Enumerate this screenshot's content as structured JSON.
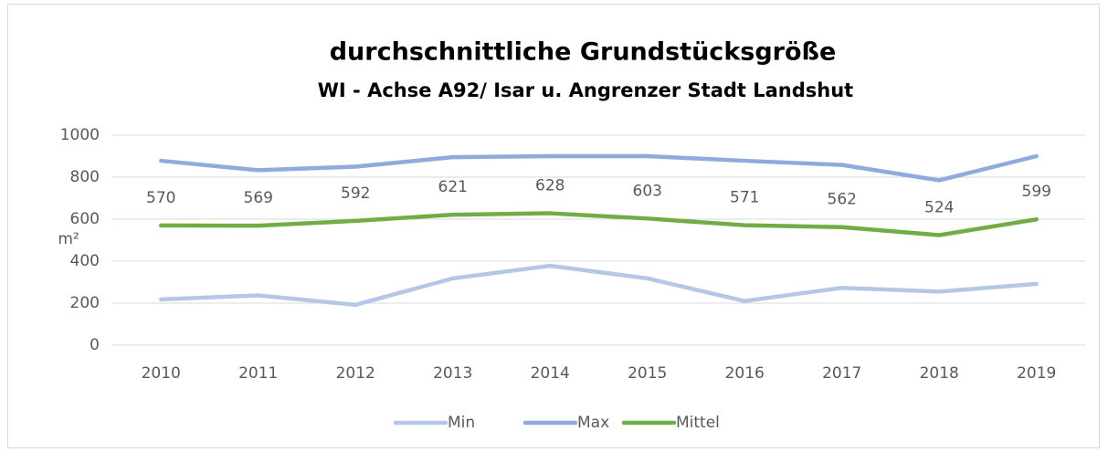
{
  "chart_data": {
    "type": "line",
    "title": "durchschnittliche Grundstücksgröße",
    "subtitle": "WI - Achse A92/ Isar u. Angrenzer Stadt Landshut",
    "ylabel": "m²",
    "categories": [
      "2010",
      "2011",
      "2012",
      "2013",
      "2014",
      "2015",
      "2016",
      "2017",
      "2018",
      "2019"
    ],
    "series": [
      {
        "name": "Min",
        "color": "#b4c7e7",
        "values": [
          218,
          237,
          192,
          318,
          378,
          318,
          210,
          273,
          255,
          292
        ]
      },
      {
        "name": "Max",
        "color": "#8faadc",
        "values": [
          878,
          833,
          850,
          895,
          900,
          900,
          878,
          858,
          785,
          900
        ]
      },
      {
        "name": "Mittel",
        "color": "#70ad47",
        "values": [
          570,
          569,
          592,
          621,
          628,
          603,
          571,
          562,
          524,
          599
        ],
        "data_labels": true
      }
    ],
    "ylim": [
      0,
      1000
    ],
    "yticks": [
      0,
      200,
      400,
      600,
      800,
      1000
    ],
    "grid": true,
    "legend": "bottom"
  }
}
